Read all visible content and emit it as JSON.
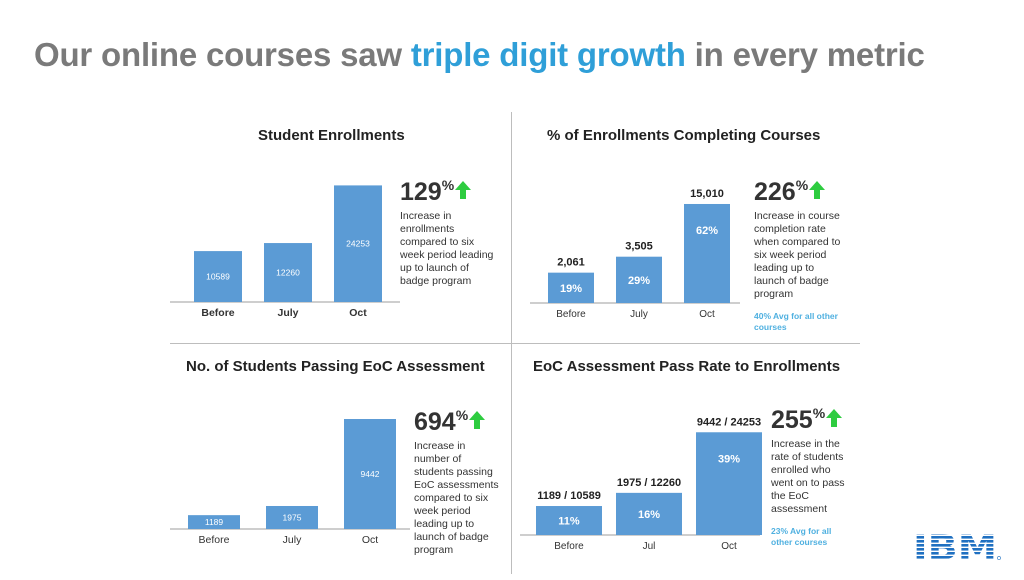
{
  "headline": {
    "part1": "Our online courses saw ",
    "highlight": "triple digit growth",
    "part2": " in every metric"
  },
  "colors": {
    "bar": "#5b9bd5",
    "accent": "#2f9fd8",
    "arrow": "#2ecc40",
    "headline": "#7a7a7a",
    "ibm": "#1f70c1"
  },
  "logo": {
    "text": "IBM",
    "icon": "ibm-logo"
  },
  "panels": [
    {
      "title": "Student Enrollments",
      "growth": {
        "value": "129",
        "unit": "%"
      },
      "description": [
        "Increase in",
        "enrollments",
        "compared to six",
        "week period leading",
        "up to launch of",
        "badge program"
      ],
      "note": []
    },
    {
      "title": "% of Enrollments Completing Courses",
      "growth": {
        "value": "226",
        "unit": "%"
      },
      "description": [
        "Increase in course",
        "completion rate",
        "when compared to",
        "six week period",
        "leading up to",
        "launch of badge",
        "program"
      ],
      "note": [
        "40% Avg for all other",
        "courses"
      ]
    },
    {
      "title": "No. of Students Passing EoC Assessment",
      "growth": {
        "value": "694",
        "unit": "%"
      },
      "description": [
        "Increase in",
        "number of",
        "students passing",
        "EoC assessments",
        "compared to six",
        "week period",
        "leading up to",
        "launch of badge",
        "program"
      ],
      "note": []
    },
    {
      "title": "EoC Assessment Pass Rate to Enrollments",
      "growth": {
        "value": "255",
        "unit": "%"
      },
      "description": [
        "Increase in the",
        "rate of students",
        "enrolled who",
        "went on to pass",
        "the EoC",
        "assessment"
      ],
      "note": [
        "23% Avg for all",
        "other courses"
      ]
    }
  ],
  "chart_data": [
    {
      "type": "bar",
      "title": "Student Enrollments",
      "categories": [
        "Before",
        "July",
        "Oct"
      ],
      "values": [
        10589,
        12260,
        24253
      ],
      "bar_labels": [
        "10589",
        "12260",
        "24253"
      ],
      "top_labels": [],
      "ylim": [
        0,
        26000
      ]
    },
    {
      "type": "bar",
      "title": "% of Enrollments Completing Courses",
      "categories": [
        "Before",
        "July",
        "Oct"
      ],
      "values": [
        19,
        29,
        62
      ],
      "bar_labels": [
        "19%",
        "29%",
        "62%"
      ],
      "top_labels": [
        "2,061",
        "3,505",
        "15,010"
      ],
      "ylim": [
        0,
        67
      ]
    },
    {
      "type": "bar",
      "title": "No. of Students Passing EoC Assessment",
      "categories": [
        "Before",
        "July",
        "Oct"
      ],
      "values": [
        1189,
        1975,
        9442
      ],
      "bar_labels": [
        "1189",
        "1975",
        "9442"
      ],
      "top_labels": [],
      "ylim": [
        0,
        9700
      ]
    },
    {
      "type": "bar",
      "title": "EoC Assessment Pass Rate to Enrollments",
      "categories": [
        "Before",
        "Jul",
        "Oct"
      ],
      "values": [
        11,
        16,
        39
      ],
      "bar_labels": [
        "11%",
        "16%",
        "39%"
      ],
      "top_labels": [
        "1189 / 10589",
        "1975 / 12260",
        "9442 / 24253"
      ],
      "ylim": [
        0,
        41
      ]
    }
  ]
}
